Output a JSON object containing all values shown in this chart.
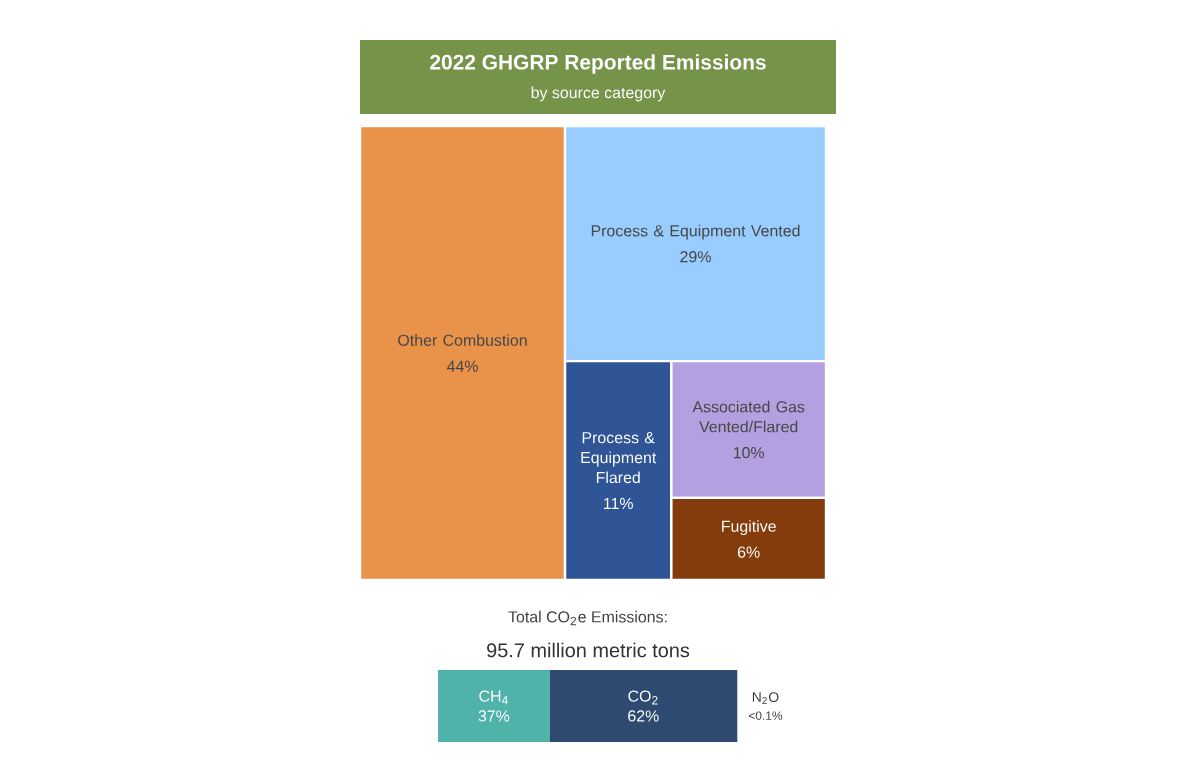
{
  "chart_data": [
    {
      "type": "other",
      "title": "2022 GHGRP Reported Emissions",
      "subtitle": "by source category",
      "categories": [
        "Other Combustion",
        "Process & Equipment Vented",
        "Process & Equipment Flared",
        "Associated Gas Vented/Flared",
        "Fugitive"
      ],
      "values": [
        44,
        29,
        11,
        10,
        6
      ],
      "value_labels": [
        "44%",
        "29%",
        "11%",
        "10%",
        "6%"
      ],
      "colors": [
        "#e8924a",
        "#99ccff",
        "#2f5597",
        "#b4a0e0",
        "#843c0c"
      ]
    },
    {
      "type": "other",
      "title": "Total CO$_{2}$e Emissions:",
      "subtitle": "95.7 million metric tons",
      "categories": [
        "CH$_{4}$",
        "CO$_{2}$",
        "N$_{2}$O"
      ],
      "values": [
        37,
        62,
        0.1
      ],
      "value_labels": [
        "37%",
        "62%",
        "<0.1%"
      ],
      "colors": [
        "#4fb3aa",
        "#2e4a70",
        "#2e4a70"
      ]
    }
  ]
}
